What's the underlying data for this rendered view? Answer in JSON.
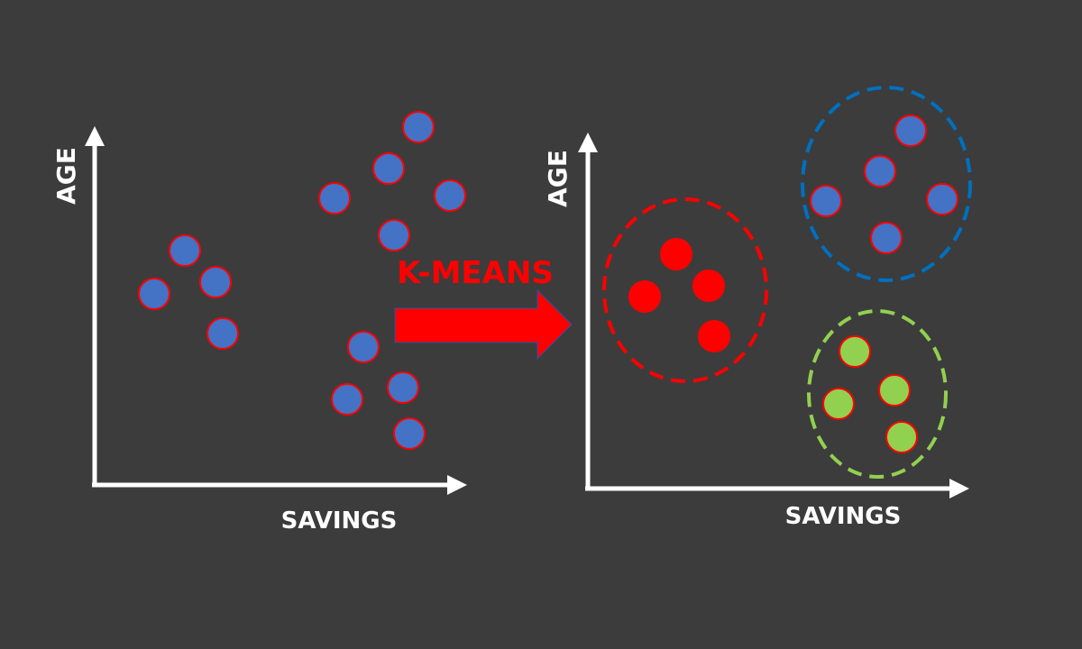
{
  "colors": {
    "background": "#3c3c3c",
    "axis": "#ffffff",
    "point_blue": "#4472c4",
    "point_red": "#ff0000",
    "point_green": "#92d050",
    "point_stroke": "#ff0000",
    "cluster_red": "#ff0000",
    "cluster_blue": "#0070c0",
    "cluster_green": "#92d050",
    "arrow": "#ff0000"
  },
  "left_panel": {
    "y_axis_label": "AGE",
    "x_axis_label": "SAVINGS"
  },
  "transform": {
    "label": "K-MEANS",
    "icon": "right-arrow-icon"
  },
  "right_panel": {
    "y_axis_label": "AGE",
    "x_axis_label": "SAVINGS",
    "clusters": [
      {
        "name": "red",
        "color_key": "cluster_red"
      },
      {
        "name": "blue",
        "color_key": "cluster_blue"
      },
      {
        "name": "green",
        "color_key": "cluster_green"
      }
    ]
  }
}
